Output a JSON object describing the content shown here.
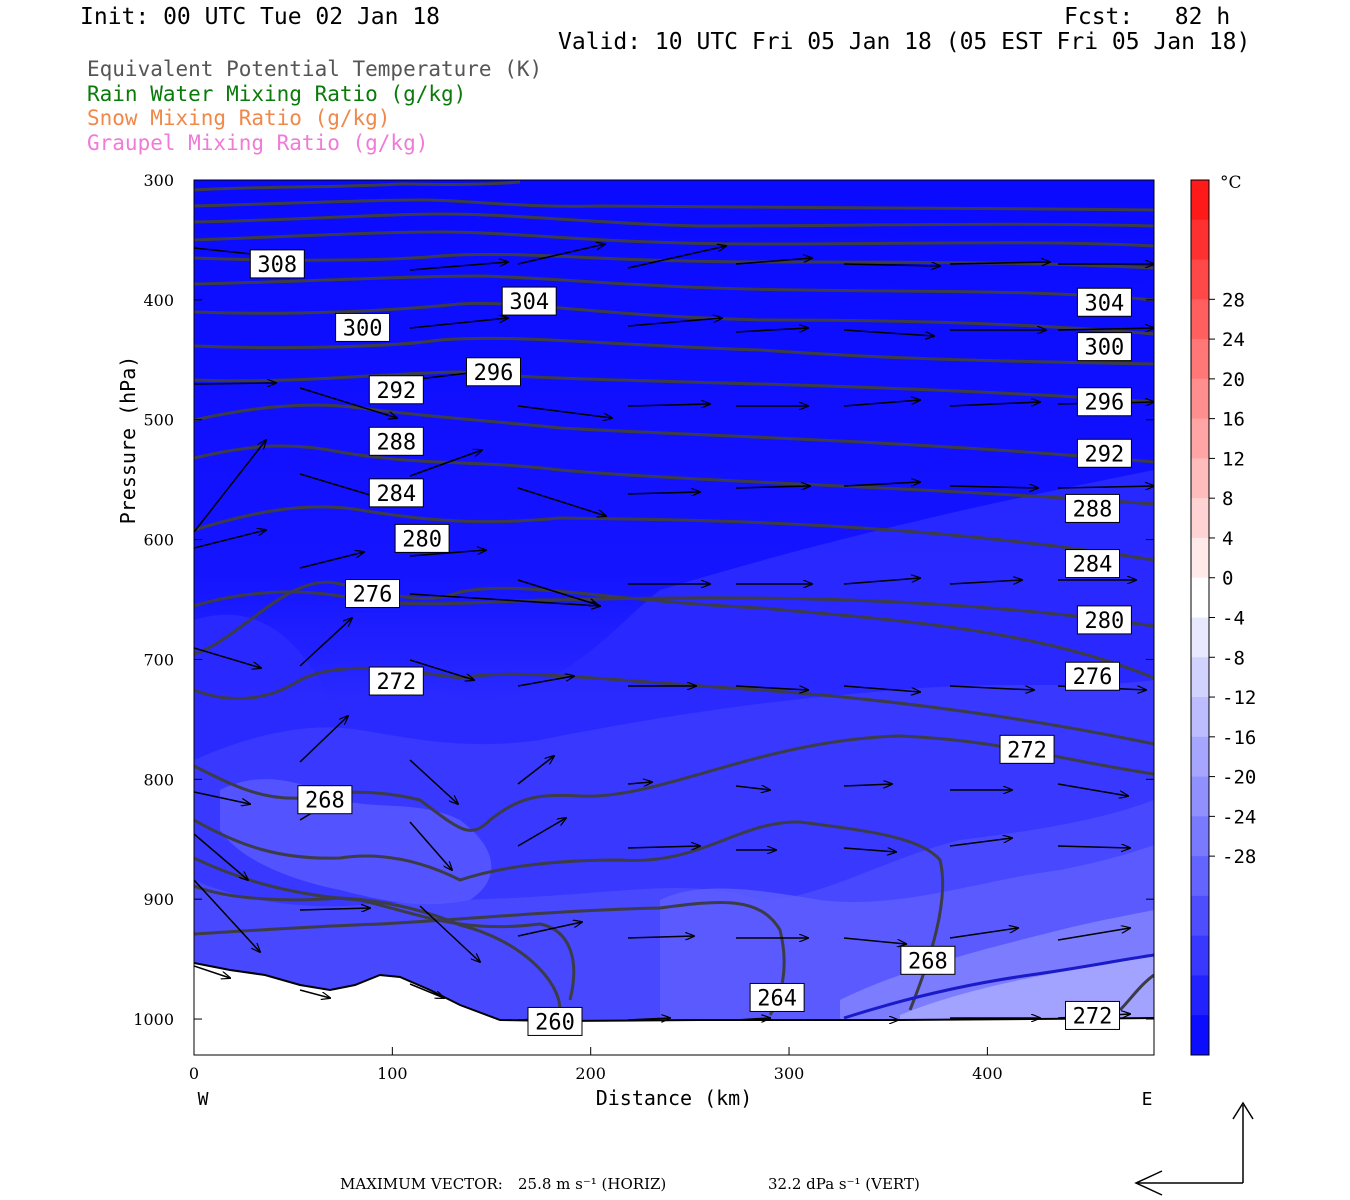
{
  "header": {
    "init": "Init: 00 UTC Tue 02 Jan 18",
    "fcst": "Fcst:   82 h",
    "valid": "Valid: 10 UTC Fri 05 Jan 18 (05 EST Fri 05 Jan 18)"
  },
  "legend": [
    {
      "label": "Equivalent Potential Temperature (K)",
      "color": "#555555"
    },
    {
      "label": "Rain Water Mixing Ratio (g/kg)",
      "color": "#0a7a0a"
    },
    {
      "label": "Snow Mixing Ratio (g/kg)",
      "color": "#f0884a"
    },
    {
      "label": "Graupel Mixing Ratio (g/kg)",
      "color": "#f07ad8"
    }
  ],
  "footer": {
    "label": "MAXIMUM VECTOR:",
    "horiz": "25.8 m s⁻¹ (HORIZ)",
    "vert": "32.2 dPa s⁻¹ (VERT)"
  },
  "chart_data": {
    "type": "cross-section",
    "xlabel": "Distance (km)",
    "ylabel": "Pressure (hPa)",
    "xlim": [
      0,
      484
    ],
    "ylim": [
      1030,
      300
    ],
    "x_ticks": [
      0,
      100,
      200,
      300,
      400
    ],
    "y_ticks": [
      300,
      400,
      500,
      600,
      700,
      800,
      900,
      1000
    ],
    "x_end_labels": {
      "left": "W",
      "right": "E"
    },
    "colorbar": {
      "unit": "°C",
      "levels": [
        28,
        24,
        20,
        16,
        12,
        8,
        4,
        0,
        -4,
        -8,
        -12,
        -16,
        -20,
        -24,
        -28
      ],
      "colors_top_to_bottom": [
        "#ff1a1a",
        "#ff3030",
        "#ff4848",
        "#ff5f5f",
        "#ff7777",
        "#ff8f8f",
        "#ffa5a5",
        "#ffbcbc",
        "#ffd3d3",
        "#ffe9e9",
        "#ffffff",
        "#e8e8ff",
        "#d2d2ff",
        "#bcbcff",
        "#a6a6ff",
        "#9090ff",
        "#7a7aff",
        "#6464ff",
        "#4e4eff",
        "#3838ff",
        "#2222ff",
        "#0c0cff"
      ]
    },
    "theta_e_contour_labels": [
      {
        "value": "308",
        "x": 42,
        "p": 370
      },
      {
        "value": "304",
        "x": 169,
        "p": 401
      },
      {
        "value": "304",
        "x": 459,
        "p": 402
      },
      {
        "value": "300",
        "x": 85,
        "p": 423
      },
      {
        "value": "300",
        "x": 459,
        "p": 439
      },
      {
        "value": "296",
        "x": 151,
        "p": 460
      },
      {
        "value": "296",
        "x": 459,
        "p": 485
      },
      {
        "value": "292",
        "x": 102,
        "p": 475
      },
      {
        "value": "292",
        "x": 459,
        "p": 528
      },
      {
        "value": "288",
        "x": 102,
        "p": 518
      },
      {
        "value": "288",
        "x": 453,
        "p": 574
      },
      {
        "value": "284",
        "x": 102,
        "p": 561
      },
      {
        "value": "284",
        "x": 453,
        "p": 620
      },
      {
        "value": "280",
        "x": 115,
        "p": 599
      },
      {
        "value": "280",
        "x": 459,
        "p": 667
      },
      {
        "value": "276",
        "x": 90,
        "p": 645
      },
      {
        "value": "276",
        "x": 453,
        "p": 714
      },
      {
        "value": "272",
        "x": 102,
        "p": 718
      },
      {
        "value": "272",
        "x": 420,
        "p": 775
      },
      {
        "value": "268",
        "x": 66,
        "p": 817
      },
      {
        "value": "268",
        "x": 370,
        "p": 951
      },
      {
        "value": "264",
        "x": 294,
        "p": 982
      },
      {
        "value": "260",
        "x": 182,
        "p": 1002
      },
      {
        "value": "272",
        "x": 453,
        "p": 997
      }
    ],
    "wind_vectors_note": "horizontal/vertical circulation vectors"
  }
}
